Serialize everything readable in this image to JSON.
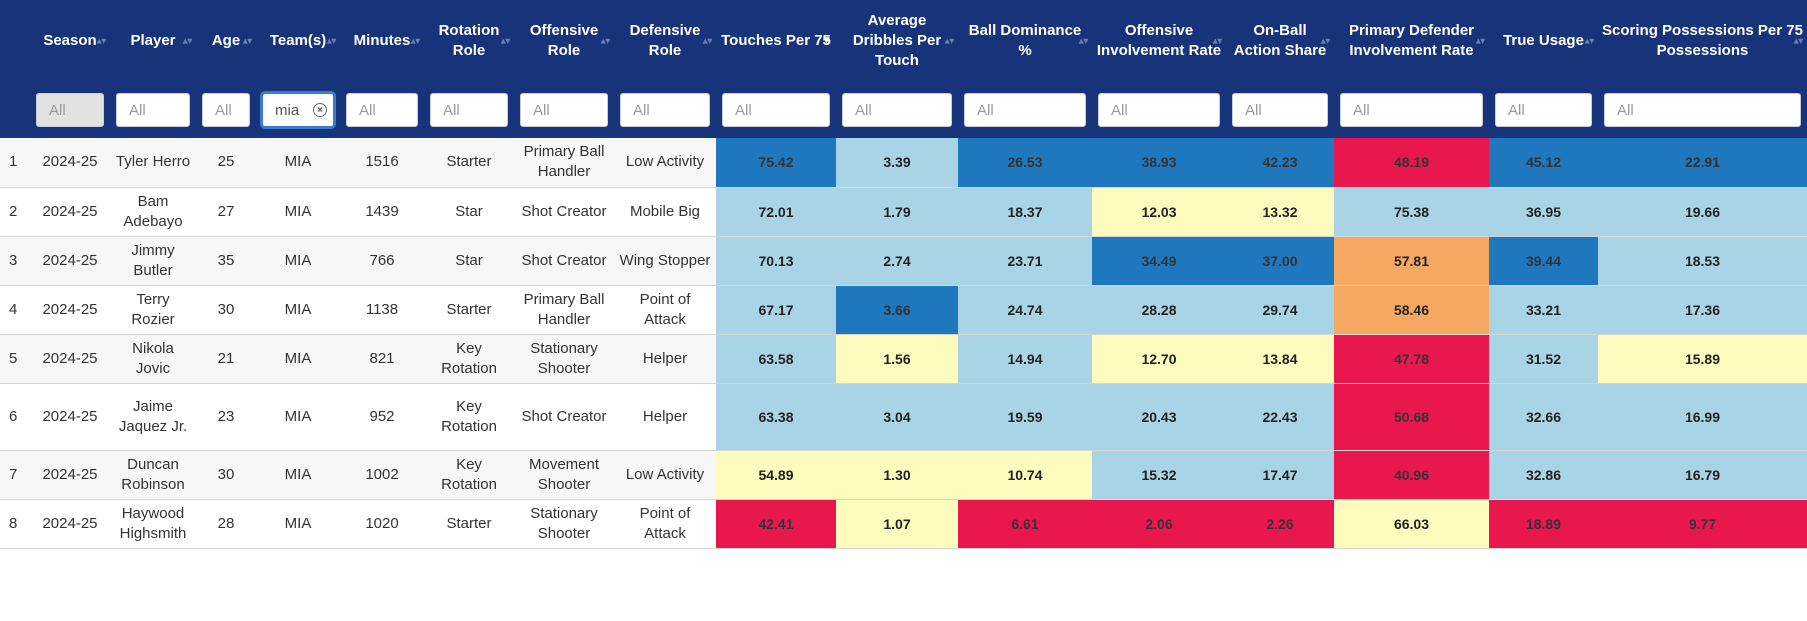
{
  "columns": [
    {
      "key": "idx",
      "label": ""
    },
    {
      "key": "season",
      "label": "Season"
    },
    {
      "key": "player",
      "label": "Player"
    },
    {
      "key": "age",
      "label": "Age"
    },
    {
      "key": "team",
      "label": "Team(s)"
    },
    {
      "key": "minutes",
      "label": "Minutes"
    },
    {
      "key": "rotation",
      "label": "Rotation Role"
    },
    {
      "key": "offrole",
      "label": "Offensive Role"
    },
    {
      "key": "defrole",
      "label": "Defensive Role"
    },
    {
      "key": "touches",
      "label": "Touches Per 75"
    },
    {
      "key": "dribbles",
      "label": "Average Dribbles Per Touch"
    },
    {
      "key": "dominance",
      "label": "Ball Dominance %"
    },
    {
      "key": "offinv",
      "label": "Offensive Involvement Rate"
    },
    {
      "key": "onball",
      "label": "On-Ball Action Share"
    },
    {
      "key": "pdi",
      "label": "Primary Defender Involvement Rate"
    },
    {
      "key": "usage",
      "label": "True Usage"
    },
    {
      "key": "scoring",
      "label": "Scoring Possessions Per 75 Possessions"
    }
  ],
  "sort": {
    "column": "touches",
    "direction": "descending"
  },
  "filters": {
    "placeholder": "All",
    "team_value": "mia"
  },
  "colors": {
    "header_bg": "#17347a",
    "dark_blue": "#1f77be",
    "light_blue": "#a8d4e6",
    "light_yellow": "#fdfbbd",
    "orange": "#f5a862",
    "red": "#e8174e"
  },
  "rows": [
    {
      "idx": "1",
      "season": "2024-25",
      "player": "Tyler Herro",
      "age": "25",
      "team": "MIA",
      "minutes": "1516",
      "rotation": "Starter",
      "offrole": "Primary Ball Handler",
      "defrole": "Low Activity",
      "touches": "75.42",
      "dribbles": "3.39",
      "dominance": "26.53",
      "offinv": "38.93",
      "onball": "42.23",
      "pdi": "48.19",
      "usage": "45.12",
      "scoring": "22.91"
    },
    {
      "idx": "2",
      "season": "2024-25",
      "player": "Bam Adebayo",
      "age": "27",
      "team": "MIA",
      "minutes": "1439",
      "rotation": "Star",
      "offrole": "Shot Creator",
      "defrole": "Mobile Big",
      "touches": "72.01",
      "dribbles": "1.79",
      "dominance": "18.37",
      "offinv": "12.03",
      "onball": "13.32",
      "pdi": "75.38",
      "usage": "36.95",
      "scoring": "19.66"
    },
    {
      "idx": "3",
      "season": "2024-25",
      "player": "Jimmy Butler",
      "age": "35",
      "team": "MIA",
      "minutes": "766",
      "rotation": "Star",
      "offrole": "Shot Creator",
      "defrole": "Wing Stopper",
      "touches": "70.13",
      "dribbles": "2.74",
      "dominance": "23.71",
      "offinv": "34.49",
      "onball": "37.00",
      "pdi": "57.81",
      "usage": "39.44",
      "scoring": "18.53"
    },
    {
      "idx": "4",
      "season": "2024-25",
      "player": "Terry Rozier",
      "age": "30",
      "team": "MIA",
      "minutes": "1138",
      "rotation": "Starter",
      "offrole": "Primary Ball Handler",
      "defrole": "Point of Attack",
      "touches": "67.17",
      "dribbles": "3.66",
      "dominance": "24.74",
      "offinv": "28.28",
      "onball": "29.74",
      "pdi": "58.46",
      "usage": "33.21",
      "scoring": "17.36"
    },
    {
      "idx": "5",
      "season": "2024-25",
      "player": "Nikola Jovic",
      "age": "21",
      "team": "MIA",
      "minutes": "821",
      "rotation": "Key Rotation",
      "offrole": "Stationary Shooter",
      "defrole": "Helper",
      "touches": "63.58",
      "dribbles": "1.56",
      "dominance": "14.94",
      "offinv": "12.70",
      "onball": "13.84",
      "pdi": "47.78",
      "usage": "31.52",
      "scoring": "15.89"
    },
    {
      "idx": "6",
      "season": "2024-25",
      "player": "Jaime Jaquez Jr.",
      "age": "23",
      "team": "MIA",
      "minutes": "952",
      "rotation": "Key Rotation",
      "offrole": "Shot Creator",
      "defrole": "Helper",
      "touches": "63.38",
      "dribbles": "3.04",
      "dominance": "19.59",
      "offinv": "20.43",
      "onball": "22.43",
      "pdi": "50.68",
      "usage": "32.66",
      "scoring": "16.99"
    },
    {
      "idx": "7",
      "season": "2024-25",
      "player": "Duncan Robinson",
      "age": "30",
      "team": "MIA",
      "minutes": "1002",
      "rotation": "Key Rotation",
      "offrole": "Movement Shooter",
      "defrole": "Low Activity",
      "touches": "54.89",
      "dribbles": "1.30",
      "dominance": "10.74",
      "offinv": "15.32",
      "onball": "17.47",
      "pdi": "40.96",
      "usage": "32.86",
      "scoring": "16.79"
    },
    {
      "idx": "8",
      "season": "2024-25",
      "player": "Haywood Highsmith",
      "age": "28",
      "team": "MIA",
      "minutes": "1020",
      "rotation": "Starter",
      "offrole": "Stationary Shooter",
      "defrole": "Point of Attack",
      "touches": "42.41",
      "dribbles": "1.07",
      "dominance": "6.61",
      "offinv": "2.06",
      "onball": "2.26",
      "pdi": "66.03",
      "usage": "18.89",
      "scoring": "9.77"
    }
  ],
  "cell_colors": [
    {
      "touches": "dark_blue",
      "dribbles": "light_blue",
      "dominance": "dark_blue",
      "offinv": "dark_blue",
      "onball": "dark_blue",
      "pdi": "red",
      "usage": "dark_blue",
      "scoring": "dark_blue"
    },
    {
      "touches": "light_blue",
      "dribbles": "light_blue",
      "dominance": "light_blue",
      "offinv": "light_yellow",
      "onball": "light_yellow",
      "pdi": "light_blue",
      "usage": "light_blue",
      "scoring": "light_blue"
    },
    {
      "touches": "light_blue",
      "dribbles": "light_blue",
      "dominance": "light_blue",
      "offinv": "dark_blue",
      "onball": "dark_blue",
      "pdi": "orange",
      "usage": "dark_blue",
      "scoring": "light_blue"
    },
    {
      "touches": "light_blue",
      "dribbles": "dark_blue",
      "dominance": "light_blue",
      "offinv": "light_blue",
      "onball": "light_blue",
      "pdi": "orange",
      "usage": "light_blue",
      "scoring": "light_blue"
    },
    {
      "touches": "light_blue",
      "dribbles": "light_yellow",
      "dominance": "light_blue",
      "offinv": "light_yellow",
      "onball": "light_yellow",
      "pdi": "red",
      "usage": "light_blue",
      "scoring": "light_yellow"
    },
    {
      "touches": "light_blue",
      "dribbles": "light_blue",
      "dominance": "light_blue",
      "offinv": "light_blue",
      "onball": "light_blue",
      "pdi": "red",
      "usage": "light_blue",
      "scoring": "light_blue"
    },
    {
      "touches": "light_yellow",
      "dribbles": "light_yellow",
      "dominance": "light_yellow",
      "offinv": "light_blue",
      "onball": "light_blue",
      "pdi": "red",
      "usage": "light_blue",
      "scoring": "light_blue"
    },
    {
      "touches": "red",
      "dribbles": "light_yellow",
      "dominance": "red",
      "offinv": "red",
      "onball": "red",
      "pdi": "light_yellow",
      "usage": "red",
      "scoring": "red"
    }
  ]
}
